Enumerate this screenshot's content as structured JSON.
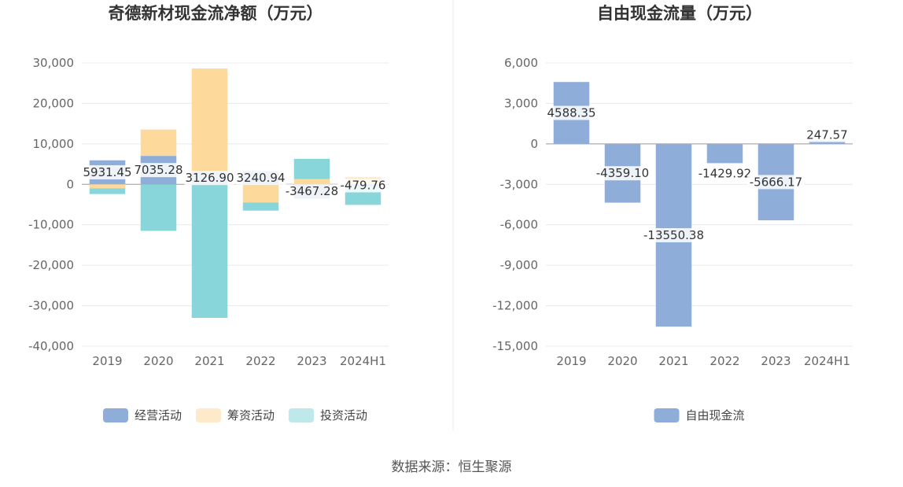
{
  "source_text": "数据来源：恒生聚源",
  "colors": {
    "operating": "#8eadd9",
    "financing": "#fed99c",
    "investing": "#88d6d9"
  },
  "chart_data": [
    {
      "type": "bar",
      "stacked": true,
      "title": "奇德新材现金流净额（万元）",
      "categories": [
        "2019",
        "2020",
        "2021",
        "2022",
        "2023",
        "2024H1"
      ],
      "ylim": [
        -40000,
        30000
      ],
      "yticks": [
        30000,
        20000,
        10000,
        0,
        -10000,
        -20000,
        -30000,
        -40000
      ],
      "ytick_labels": [
        "30,000",
        "20,000",
        "10,000",
        "0",
        "-10,000",
        "-20,000",
        "-30,000",
        "-40,000"
      ],
      "grid": true,
      "legend_position": "bottom",
      "series": [
        {
          "name": "经营活动",
          "values": [
            5931.45,
            7035.28,
            3126.9,
            3240.94,
            -3467.28,
            -479.76
          ],
          "labels": [
            "5931.45",
            "7035.28",
            "3126.90",
            "3240.94",
            "-3467.28",
            "-479.76"
          ]
        },
        {
          "name": "筹资活动",
          "values": [
            -1000,
            6500,
            25500,
            -4500,
            1300,
            1700
          ]
        },
        {
          "name": "投资活动",
          "values": [
            -1400,
            -11500,
            -33000,
            -2000,
            5000,
            -4600
          ]
        }
      ]
    },
    {
      "type": "bar",
      "title": "自由现金流量（万元）",
      "categories": [
        "2019",
        "2020",
        "2021",
        "2022",
        "2023",
        "2024H1"
      ],
      "ylim": [
        -15000,
        6000
      ],
      "yticks": [
        6000,
        3000,
        0,
        -3000,
        -6000,
        -9000,
        -12000,
        -15000
      ],
      "ytick_labels": [
        "6,000",
        "3,000",
        "0",
        "-3,000",
        "-6,000",
        "-9,000",
        "-12,000",
        "-15,000"
      ],
      "grid": true,
      "legend_position": "bottom",
      "series": [
        {
          "name": "自由现金流",
          "values": [
            4588.35,
            -4359.1,
            -13550.38,
            -1429.92,
            -5666.17,
            247.57
          ],
          "labels": [
            "4588.35",
            "-4359.10",
            "-13550.38",
            "-1429.92",
            "-5666.17",
            "247.57"
          ]
        }
      ]
    }
  ]
}
